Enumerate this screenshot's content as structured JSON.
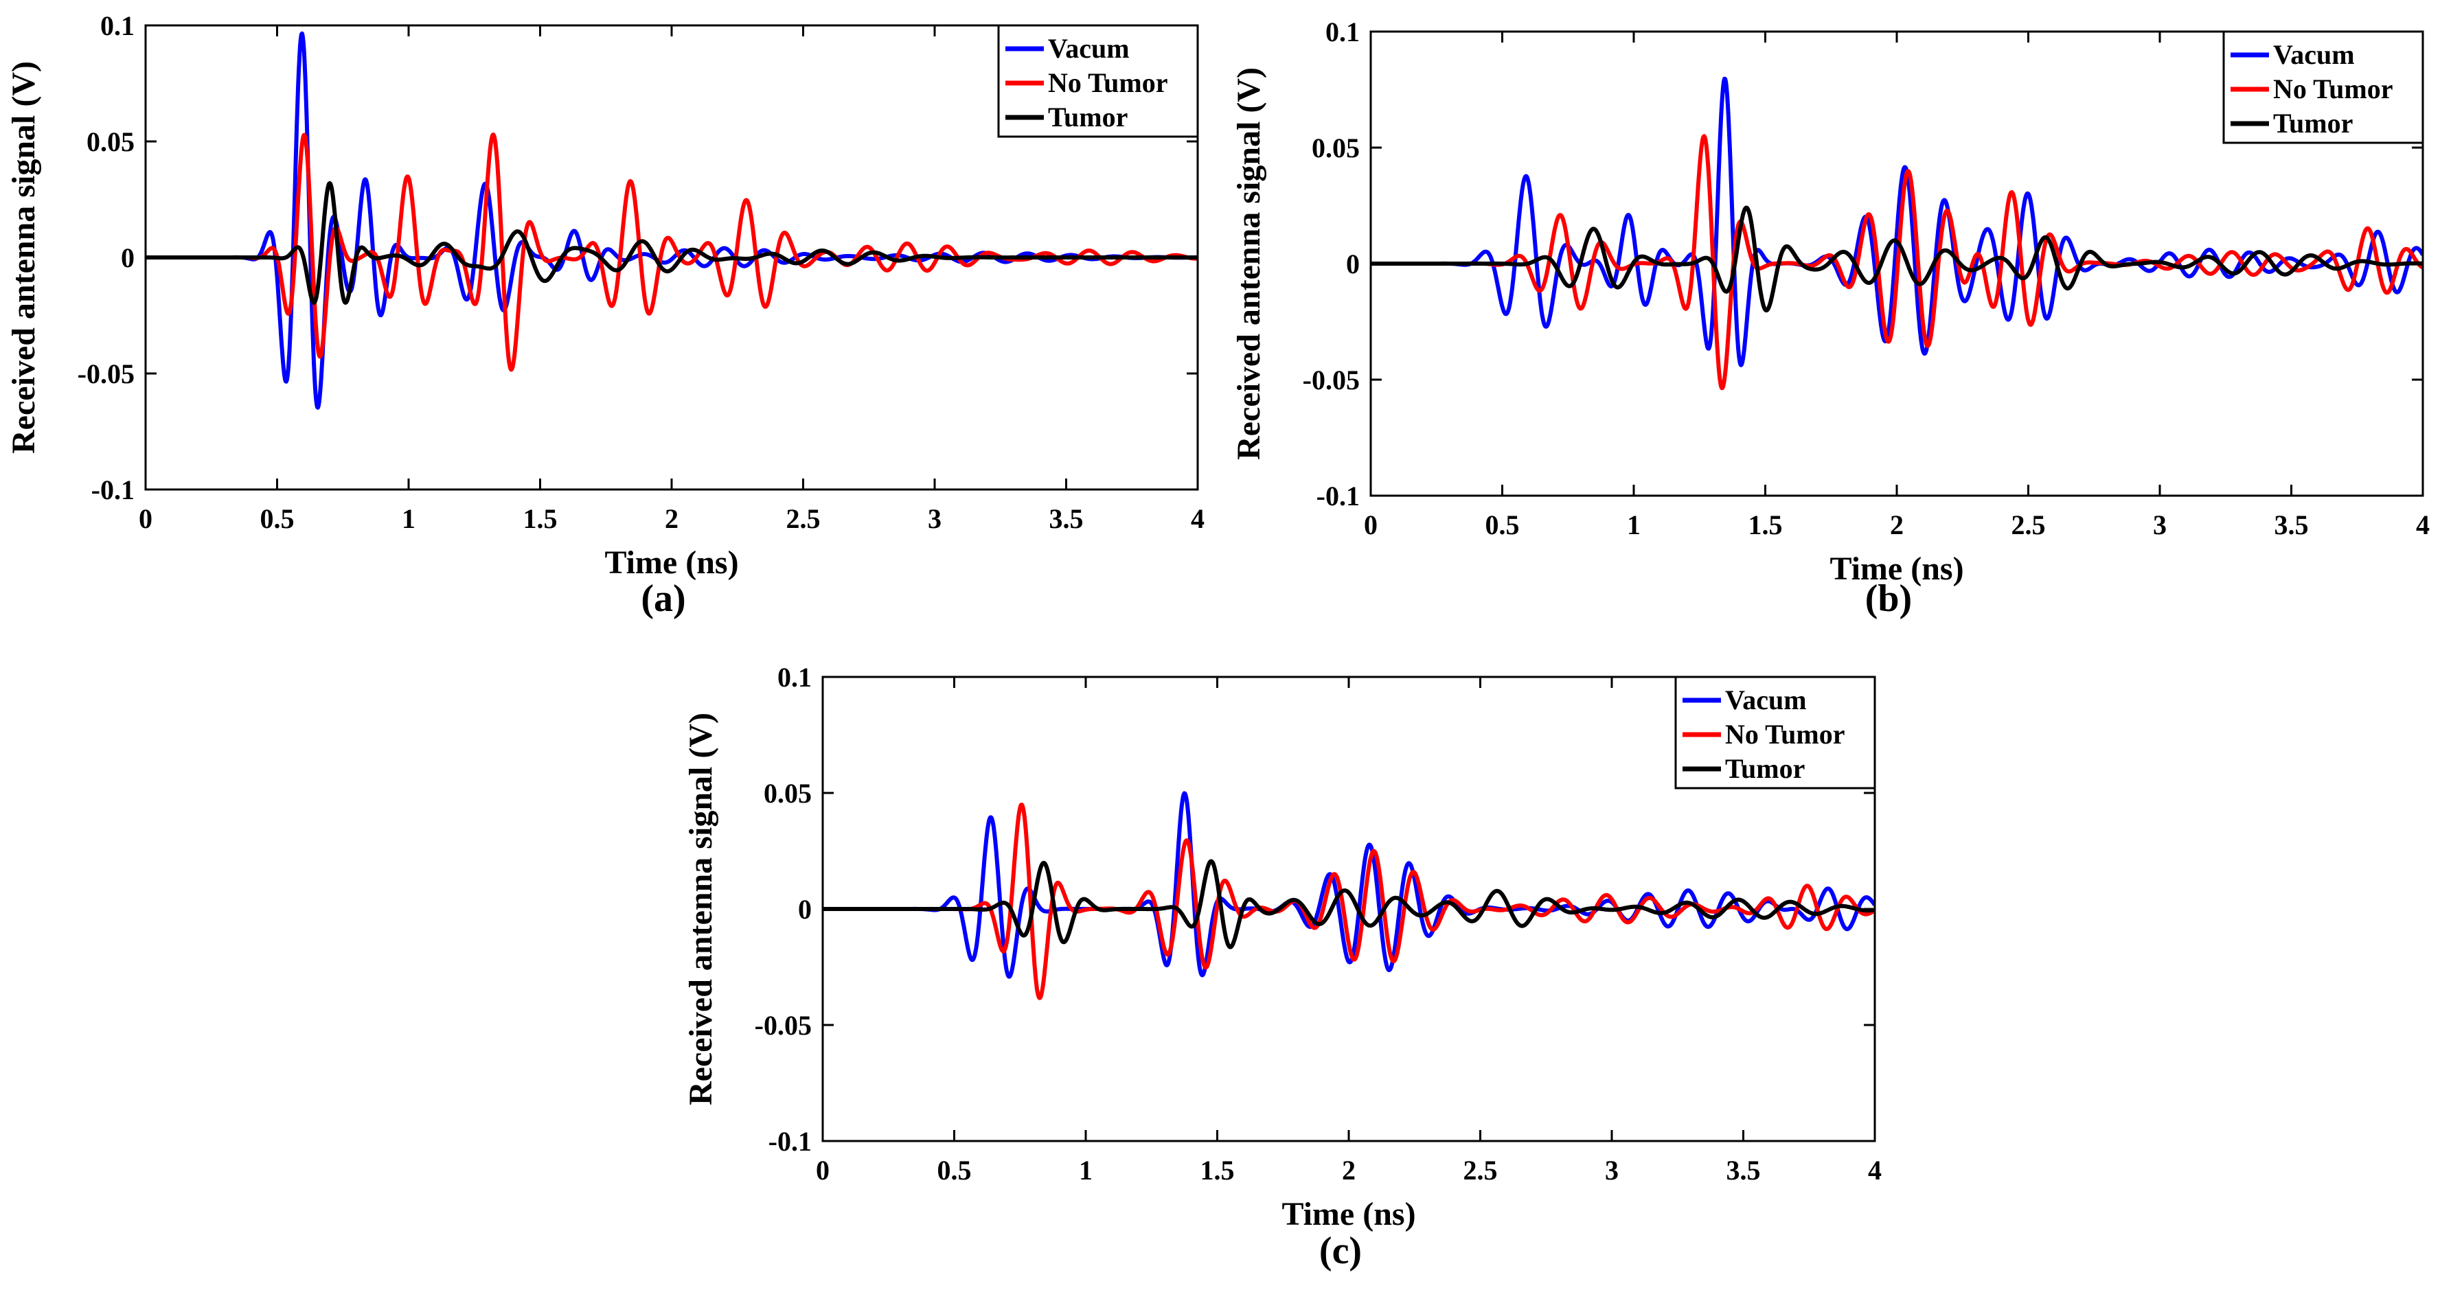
{
  "chart_data": [
    {
      "id": "a",
      "type": "line",
      "panel_label": "(a)",
      "xlabel": "Time (ns)",
      "ylabel": "Received antenna signal (V)",
      "xlim": [
        0,
        4
      ],
      "ylim": [
        -0.1,
        0.1
      ],
      "xticks": [
        "0",
        "0.5",
        "1",
        "1.5",
        "2",
        "2.5",
        "3",
        "3.5",
        "4"
      ],
      "yticks": [
        "-0.1",
        "-0.05",
        "0",
        "0.05",
        "0.1"
      ],
      "legend": [
        "Vacum",
        "No Tumor",
        "Tumor"
      ],
      "legend_position": "top-right",
      "series": [
        {
          "name": "Vacum",
          "color": "#0000ff",
          "pulses": [
            {
              "t": 0.6,
              "a": 0.097,
              "w": 0.09,
              "f": 7.5,
              "p": 0.3
            },
            {
              "t": 0.85,
              "a": 0.035,
              "w": 0.08,
              "f": 7.5,
              "p": 0.8
            },
            {
              "t": 1.3,
              "a": 0.032,
              "w": 0.11,
              "f": 6.5,
              "p": 0.4
            },
            {
              "t": 1.65,
              "a": 0.012,
              "w": 0.1,
              "f": 7.0,
              "p": 1.0
            },
            {
              "t": 2.2,
              "a": 0.004,
              "w": 0.3,
              "f": 6.5,
              "p": 0.0
            },
            {
              "t": 3.2,
              "a": 0.002,
              "w": 0.4,
              "f": 6.0,
              "p": 0.5
            }
          ]
        },
        {
          "name": "No Tumor",
          "color": "#ff0000",
          "pulses": [
            {
              "t": 0.62,
              "a": 0.055,
              "w": 0.09,
              "f": 7.5,
              "p": 0.9
            },
            {
              "t": 1.0,
              "a": 0.035,
              "w": 0.09,
              "f": 6.5,
              "p": 0.2
            },
            {
              "t": 1.35,
              "a": 0.058,
              "w": 0.1,
              "f": 6.5,
              "p": 1.3
            },
            {
              "t": 1.85,
              "a": 0.033,
              "w": 0.12,
              "f": 6.5,
              "p": 0.3
            },
            {
              "t": 2.3,
              "a": 0.025,
              "w": 0.14,
              "f": 6.5,
              "p": 0.7
            },
            {
              "t": 2.9,
              "a": 0.006,
              "w": 0.3,
              "f": 6.5,
              "p": 0.2
            },
            {
              "t": 3.6,
              "a": 0.003,
              "w": 0.3,
              "f": 6.0,
              "p": 0.5
            }
          ]
        },
        {
          "name": "Tumor",
          "color": "#000000",
          "pulses": [
            {
              "t": 0.7,
              "a": 0.032,
              "w": 0.09,
              "f": 7.5,
              "p": 0.0
            },
            {
              "t": 1.15,
              "a": 0.006,
              "w": 0.15,
              "f": 5.0,
              "p": 0.6
            },
            {
              "t": 1.45,
              "a": 0.012,
              "w": 0.18,
              "f": 4.5,
              "p": 1.1
            },
            {
              "t": 1.9,
              "a": 0.007,
              "w": 0.22,
              "f": 5.0,
              "p": 0.4
            },
            {
              "t": 2.6,
              "a": 0.003,
              "w": 0.3,
              "f": 5.0,
              "p": 0.9
            }
          ]
        }
      ]
    },
    {
      "id": "b",
      "type": "line",
      "panel_label": "(b)",
      "xlabel": "Time (ns)",
      "ylabel": "Received antenna signal (V)",
      "xlim": [
        0,
        4
      ],
      "ylim": [
        -0.1,
        0.1
      ],
      "xticks": [
        "0",
        "0.5",
        "1",
        "1.5",
        "2",
        "2.5",
        "3",
        "3.5",
        "4"
      ],
      "yticks": [
        "-0.1",
        "-0.05",
        "0",
        "0.05",
        "0.1"
      ],
      "legend": [
        "Vacum",
        "No Tumor",
        "Tumor"
      ],
      "legend_position": "top-right",
      "series": [
        {
          "name": "Vacum",
          "color": "#0000ff",
          "pulses": [
            {
              "t": 0.6,
              "a": 0.038,
              "w": 0.12,
              "f": 6.0,
              "p": 0.4
            },
            {
              "t": 1.0,
              "a": 0.022,
              "w": 0.1,
              "f": 7.0,
              "p": 1.0
            },
            {
              "t": 1.35,
              "a": 0.08,
              "w": 0.08,
              "f": 7.0,
              "p": 0.2
            },
            {
              "t": 2.05,
              "a": 0.042,
              "w": 0.2,
              "f": 6.5,
              "p": 0.8
            },
            {
              "t": 2.5,
              "a": 0.03,
              "w": 0.15,
              "f": 6.5,
              "p": 0.1
            },
            {
              "t": 3.2,
              "a": 0.006,
              "w": 0.3,
              "f": 6.5,
              "p": 0.5
            },
            {
              "t": 3.85,
              "a": 0.014,
              "w": 0.15,
              "f": 6.5,
              "p": 0.9
            }
          ]
        },
        {
          "name": "No Tumor",
          "color": "#ff0000",
          "pulses": [
            {
              "t": 0.75,
              "a": 0.022,
              "w": 0.14,
              "f": 6.0,
              "p": 1.2
            },
            {
              "t": 1.3,
              "a": 0.062,
              "w": 0.1,
              "f": 6.5,
              "p": 1.5
            },
            {
              "t": 2.05,
              "a": 0.04,
              "w": 0.2,
              "f": 6.5,
              "p": 0.3
            },
            {
              "t": 2.45,
              "a": 0.032,
              "w": 0.14,
              "f": 6.5,
              "p": 0.6
            },
            {
              "t": 3.3,
              "a": 0.005,
              "w": 0.3,
              "f": 6.0,
              "p": 1.0
            },
            {
              "t": 3.8,
              "a": 0.015,
              "w": 0.15,
              "f": 6.5,
              "p": 0.4
            }
          ]
        },
        {
          "name": "Tumor",
          "color": "#000000",
          "pulses": [
            {
              "t": 0.85,
              "a": 0.015,
              "w": 0.15,
              "f": 5.0,
              "p": 0.1
            },
            {
              "t": 1.45,
              "a": 0.025,
              "w": 0.12,
              "f": 6.0,
              "p": 0.9
            },
            {
              "t": 2.0,
              "a": 0.01,
              "w": 0.25,
              "f": 5.0,
              "p": 0.3
            },
            {
              "t": 2.6,
              "a": 0.012,
              "w": 0.15,
              "f": 5.5,
              "p": 1.3
            },
            {
              "t": 3.4,
              "a": 0.005,
              "w": 0.3,
              "f": 5.0,
              "p": 0.7
            }
          ]
        }
      ]
    },
    {
      "id": "c",
      "type": "line",
      "panel_label": "(c)",
      "xlabel": "Time (ns)",
      "ylabel": "Received antenna signal (V)",
      "xlim": [
        0,
        4
      ],
      "ylim": [
        -0.1,
        0.1
      ],
      "xticks": [
        "0",
        "0.5",
        "1",
        "1.5",
        "2",
        "2.5",
        "3",
        "3.5",
        "4"
      ],
      "yticks": [
        "-0.1",
        "-0.05",
        "0",
        "0.05",
        "0.1"
      ],
      "legend": [
        "Vacum",
        "No Tumor",
        "Tumor"
      ],
      "legend_position": "top-right",
      "series": [
        {
          "name": "Vacum",
          "color": "#0000ff",
          "pulses": [
            {
              "t": 0.65,
              "a": 0.04,
              "w": 0.11,
              "f": 6.5,
              "p": 0.5
            },
            {
              "t": 1.38,
              "a": 0.05,
              "w": 0.09,
              "f": 6.5,
              "p": 0.2
            },
            {
              "t": 2.1,
              "a": 0.028,
              "w": 0.22,
              "f": 6.5,
              "p": 0.9
            },
            {
              "t": 3.3,
              "a": 0.008,
              "w": 0.35,
              "f": 6.5,
              "p": 0.4
            },
            {
              "t": 3.85,
              "a": 0.01,
              "w": 0.15,
              "f": 6.5,
              "p": 1.2
            }
          ]
        },
        {
          "name": "No Tumor",
          "color": "#ff0000",
          "pulses": [
            {
              "t": 0.78,
              "a": 0.048,
              "w": 0.1,
              "f": 6.5,
              "p": 1.1
            },
            {
              "t": 1.4,
              "a": 0.03,
              "w": 0.14,
              "f": 6.5,
              "p": 0.7
            },
            {
              "t": 2.1,
              "a": 0.025,
              "w": 0.22,
              "f": 6.5,
              "p": 0.2
            },
            {
              "t": 3.0,
              "a": 0.006,
              "w": 0.3,
              "f": 6.0,
              "p": 0.8
            },
            {
              "t": 3.75,
              "a": 0.01,
              "w": 0.18,
              "f": 6.5,
              "p": 0.3
            }
          ]
        },
        {
          "name": "Tumor",
          "color": "#000000",
          "pulses": [
            {
              "t": 0.85,
              "a": 0.02,
              "w": 0.12,
              "f": 6.0,
              "p": 0.4
            },
            {
              "t": 1.5,
              "a": 0.022,
              "w": 0.1,
              "f": 6.0,
              "p": 1.0
            },
            {
              "t": 2.0,
              "a": 0.008,
              "w": 0.25,
              "f": 5.0,
              "p": 0.5
            },
            {
              "t": 2.6,
              "a": 0.008,
              "w": 0.2,
              "f": 5.0,
              "p": 1.2
            },
            {
              "t": 3.5,
              "a": 0.004,
              "w": 0.35,
              "f": 5.0,
              "p": 0.6
            }
          ]
        }
      ]
    }
  ]
}
